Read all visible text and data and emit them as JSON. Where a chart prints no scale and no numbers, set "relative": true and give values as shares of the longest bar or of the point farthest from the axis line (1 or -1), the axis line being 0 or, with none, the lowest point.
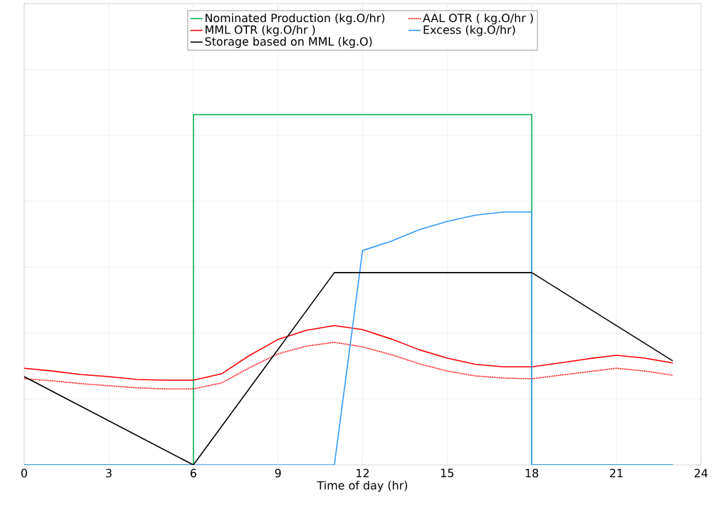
{
  "chart_data": {
    "type": "line",
    "xlabel": "Time of day (hr)",
    "xlim": [
      0,
      24
    ],
    "xticks": [
      0,
      3,
      6,
      9,
      12,
      15,
      18,
      21,
      24
    ],
    "relative": true,
    "grid": true,
    "legend": "top",
    "series": [
      {
        "name": "Nominated Production (kg.O/hr)",
        "color": "#00b050",
        "x": [
          0,
          6,
          6,
          18,
          18,
          23
        ],
        "values": [
          0,
          0,
          1,
          1,
          0,
          0
        ]
      },
      {
        "name": "AAL OTR ( kg.O/hr )",
        "color": "#ff0000",
        "line_style": "dotted",
        "x": [
          0,
          1,
          2,
          3,
          4,
          5,
          6,
          7,
          8,
          9,
          10,
          11,
          12,
          13,
          14,
          15,
          16,
          17,
          18,
          19,
          20,
          21,
          22,
          23
        ],
        "values": [
          0.246,
          0.24,
          0.232,
          0.226,
          0.22,
          0.217,
          0.217,
          0.234,
          0.278,
          0.317,
          0.339,
          0.35,
          0.337,
          0.315,
          0.289,
          0.268,
          0.254,
          0.248,
          0.246,
          0.256,
          0.266,
          0.276,
          0.268,
          0.256
        ]
      },
      {
        "name": "MML OTR (kg.O/hr )",
        "color": "#ff0000",
        "x": [
          0,
          1,
          2,
          3,
          4,
          5,
          6,
          7,
          8,
          9,
          10,
          11,
          12,
          13,
          14,
          15,
          16,
          17,
          18,
          19,
          20,
          21,
          22,
          23
        ],
        "values": [
          0.276,
          0.268,
          0.258,
          0.252,
          0.244,
          0.242,
          0.242,
          0.26,
          0.313,
          0.358,
          0.384,
          0.398,
          0.386,
          0.36,
          0.329,
          0.305,
          0.287,
          0.28,
          0.28,
          0.291,
          0.303,
          0.313,
          0.305,
          0.291
        ]
      },
      {
        "name": "Excess (kg.O/hr)",
        "color": "#3399ff",
        "x": [
          0,
          11,
          12,
          13,
          14,
          15,
          16,
          17,
          18,
          18,
          23
        ],
        "values": [
          0,
          0,
          0.612,
          0.638,
          0.671,
          0.695,
          0.713,
          0.722,
          0.722,
          0,
          0
        ]
      },
      {
        "name": "Storage based on MML (kg.O)",
        "color": "#000000",
        "x": [
          0,
          6,
          11,
          18,
          23
        ],
        "values": [
          0.252,
          0,
          0.549,
          0.549,
          0.297
        ]
      }
    ]
  }
}
